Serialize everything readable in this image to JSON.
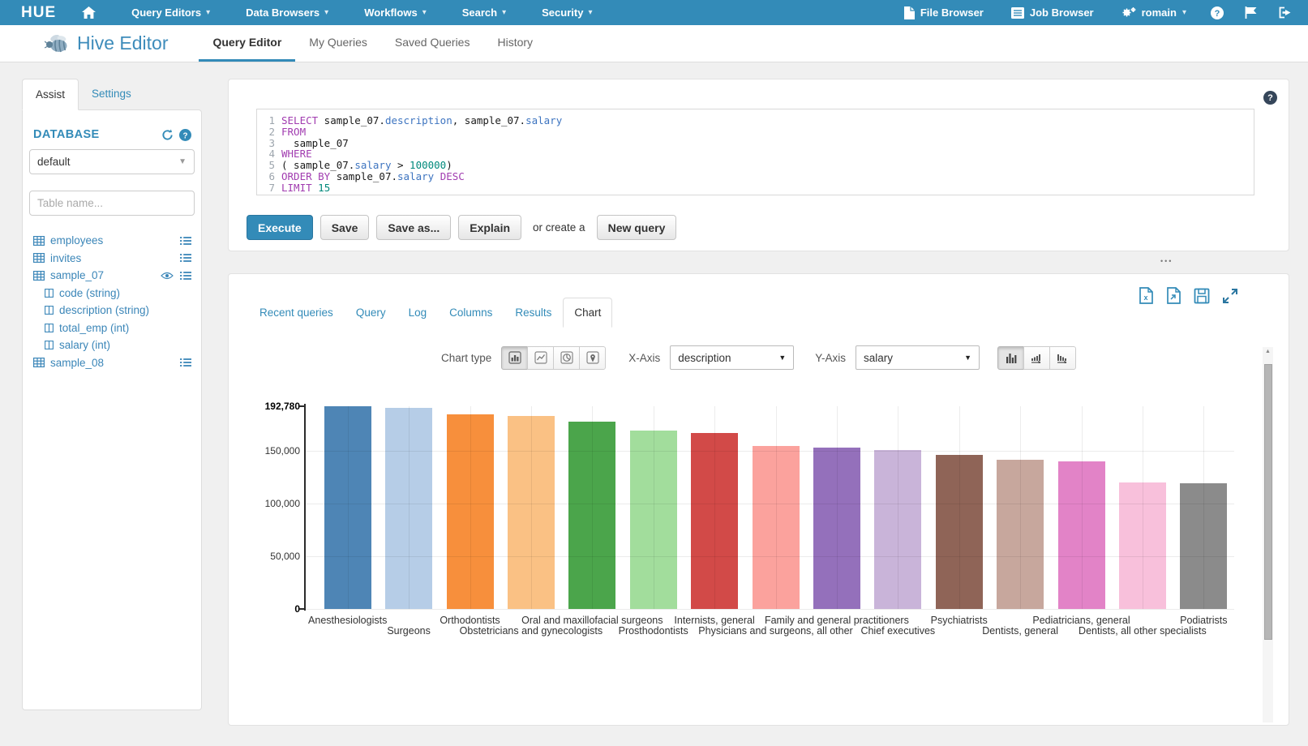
{
  "topbar": {
    "logo": "HUE",
    "menus": [
      {
        "label": "Query Editors"
      },
      {
        "label": "Data Browsers"
      },
      {
        "label": "Workflows"
      },
      {
        "label": "Search"
      },
      {
        "label": "Security"
      }
    ],
    "right": {
      "file_browser": "File Browser",
      "job_browser": "Job Browser",
      "username": "romain"
    }
  },
  "subnav": {
    "app_title": "Hive Editor",
    "tabs": [
      {
        "label": "Query Editor",
        "active": true
      },
      {
        "label": "My Queries",
        "active": false
      },
      {
        "label": "Saved Queries",
        "active": false
      },
      {
        "label": "History",
        "active": false
      }
    ]
  },
  "assist": {
    "tab_assist": "Assist",
    "tab_settings": "Settings",
    "database_label": "DATABASE",
    "database_value": "default",
    "table_filter_placeholder": "Table name...",
    "tables": [
      {
        "name": "employees",
        "icons": [
          "list"
        ],
        "columns": []
      },
      {
        "name": "invites",
        "icons": [
          "list"
        ],
        "columns": []
      },
      {
        "name": "sample_07",
        "icons": [
          "eye",
          "list"
        ],
        "columns": [
          "code (string)",
          "description (string)",
          "total_emp (int)",
          "salary (int)"
        ]
      },
      {
        "name": "sample_08",
        "icons": [
          "list"
        ],
        "columns": []
      }
    ]
  },
  "editor": {
    "lines": [
      {
        "num": "1",
        "segs": [
          [
            "kw",
            "SELECT"
          ],
          [
            "pl",
            " sample_07."
          ],
          [
            "col",
            "description"
          ],
          [
            "pl",
            ", sample_07."
          ],
          [
            "col",
            "salary"
          ]
        ]
      },
      {
        "num": "2",
        "segs": [
          [
            "kw",
            "FROM"
          ]
        ]
      },
      {
        "num": "3",
        "segs": [
          [
            "pl",
            "  sample_07"
          ]
        ]
      },
      {
        "num": "4",
        "segs": [
          [
            "kw",
            "WHERE"
          ]
        ]
      },
      {
        "num": "5",
        "segs": [
          [
            "pl",
            "( sample_07."
          ],
          [
            "col",
            "salary"
          ],
          [
            "pl",
            " > "
          ],
          [
            "num",
            "100000"
          ],
          [
            "pl",
            ")"
          ]
        ]
      },
      {
        "num": "6",
        "segs": [
          [
            "kw",
            "ORDER BY"
          ],
          [
            "pl",
            " sample_07."
          ],
          [
            "col",
            "salary"
          ],
          [
            "kw",
            " DESC"
          ]
        ]
      },
      {
        "num": "7",
        "segs": [
          [
            "kw",
            "LIMIT"
          ],
          [
            "num",
            " 15"
          ]
        ]
      }
    ]
  },
  "actions": {
    "execute": "Execute",
    "save": "Save",
    "save_as": "Save as...",
    "explain": "Explain",
    "or_create": "or create a",
    "new_query": "New query"
  },
  "main_area": {
    "resize_dots": "•••"
  },
  "results": {
    "tabs": [
      {
        "label": "Recent queries",
        "active": false
      },
      {
        "label": "Query",
        "active": false
      },
      {
        "label": "Log",
        "active": false
      },
      {
        "label": "Columns",
        "active": false
      },
      {
        "label": "Results",
        "active": false
      },
      {
        "label": "Chart",
        "active": true
      }
    ],
    "controls": {
      "chart_type_label": "Chart type",
      "x_axis_label": "X-Axis",
      "x_axis_value": "description",
      "y_axis_label": "Y-Axis",
      "y_axis_value": "salary"
    }
  },
  "chart_data": {
    "type": "bar",
    "title": "",
    "xlabel": "description",
    "ylabel": "salary",
    "ylim": [
      0,
      192780
    ],
    "grid": true,
    "legend": "none",
    "y_ticks": [
      {
        "label": "192,780",
        "value": 192780,
        "bold": true
      },
      {
        "label": "150,000",
        "value": 150000,
        "bold": false
      },
      {
        "label": "100,000",
        "value": 100000,
        "bold": false
      },
      {
        "label": "50,000",
        "value": 50000,
        "bold": false
      },
      {
        "label": "0",
        "value": 0,
        "bold": true
      }
    ],
    "grid_values": [
      150000,
      100000,
      50000,
      0
    ],
    "categories": [
      "Anesthesiologists",
      "Surgeons",
      "Orthodontists",
      "Obstetricians and gynecologists",
      "Oral and maxillofacial surgeons",
      "Prosthodontists",
      "Internists, general",
      "Physicians and surgeons, all other",
      "Family and general practitioners",
      "Chief executives",
      "Psychiatrists",
      "Dentists, general",
      "Pediatricians, general",
      "Dentists, all other specialists",
      "Podiatrists"
    ],
    "values": [
      192780,
      191410,
      185340,
      183600,
      178440,
      169810,
      167270,
      155150,
      153640,
      151370,
      146150,
      142070,
      140690,
      120540,
      119250
    ],
    "colors": [
      "#4e85b5",
      "#b6cde7",
      "#f78f3c",
      "#fac184",
      "#4ba54b",
      "#a2dd9c",
      "#d24a48",
      "#fba29d",
      "#9470bb",
      "#c9b4d9",
      "#8f6457",
      "#c7a79d",
      "#e283c7",
      "#f8c0db",
      "#8b8b8b"
    ]
  },
  "theme": {
    "accent": "#338bb8"
  }
}
